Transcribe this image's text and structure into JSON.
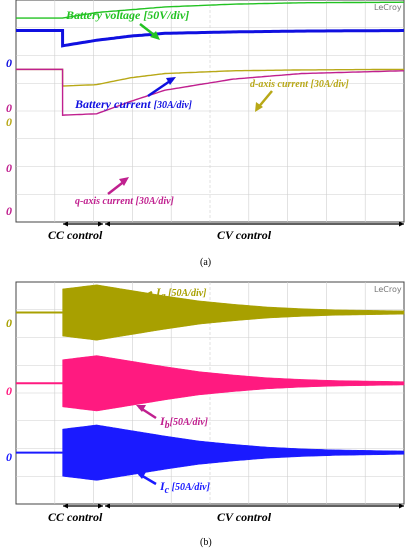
{
  "colors": {
    "grid": "#cfcfcf",
    "battery_voltage": "#22c222",
    "battery_current": "#1010e0",
    "d_axis": "#b8a817",
    "q_axis": "#c0208f",
    "Ia": "#a8a000",
    "Ib": "#ff1a80",
    "Ic": "#1a1aff"
  },
  "panel_a": {
    "scope_label": "LeCroy",
    "caption": "(a)",
    "zero_marks": [
      "0",
      "0",
      "0",
      "0",
      "0"
    ],
    "annotations": {
      "battery_voltage": "Battery voltage [50V/div]",
      "battery_current_name": "Battery current ",
      "battery_current_scale": "[30A/div]",
      "d_axis": "d-axis current [30A/div]",
      "q_axis": "q-axis current [30A/div]"
    },
    "cc_label": "CC control",
    "cv_label": "CV control"
  },
  "panel_b": {
    "scope_label": "LeCroy",
    "caption": "(b)",
    "zero_marks": [
      "0",
      "0",
      "0"
    ],
    "annotations": {
      "Ia_main": "I",
      "Ia_sub": "a",
      "Ia_scale": " [50A/div]",
      "Ib_main": "I",
      "Ib_sub": "b",
      "Ib_scale": "[50A/div]",
      "Ic_main": "I",
      "Ic_sub": "c",
      "Ic_scale": " [50A/div]"
    },
    "cc_label": "CC control",
    "cv_label": "CV control"
  },
  "chart_data": [
    {
      "type": "line",
      "note_units": "divisions (scope screen: 10 horizontal x 8 vertical divisions)",
      "xlim": [
        0,
        10
      ],
      "ylim": [
        0,
        8
      ],
      "grid": true,
      "cc_region": [
        0,
        1.0
      ],
      "cv_region": [
        1.0,
        10
      ],
      "series": [
        {
          "name": "Battery voltage",
          "x": [
            0,
            0,
            1.0,
            3,
            5,
            7,
            10
          ],
          "y": [
            7.35,
            7.35,
            7.55,
            7.75,
            7.85,
            7.9,
            7.92
          ]
        },
        {
          "name": "Battery current",
          "x": [
            0,
            0,
            1.0,
            2,
            3,
            5,
            7,
            10
          ],
          "y": [
            6.9,
            6.35,
            6.55,
            6.7,
            6.8,
            6.85,
            6.88,
            6.9
          ]
        },
        {
          "name": "d-axis current",
          "x": [
            0,
            0,
            1.0,
            2,
            3,
            5,
            7,
            10
          ],
          "y": [
            5.5,
            4.9,
            4.95,
            5.2,
            5.35,
            5.45,
            5.48,
            5.5
          ]
        },
        {
          "name": "q-axis current",
          "x": [
            0,
            0,
            1.0,
            2,
            3,
            5,
            7,
            10
          ],
          "y": [
            5.5,
            3.85,
            3.9,
            4.35,
            4.75,
            5.15,
            5.35,
            5.45
          ]
        }
      ]
    },
    {
      "type": "line",
      "note_units": "envelope amplitude in divisions above/below each trace's zero level",
      "xlim": [
        0,
        10
      ],
      "ylim": [
        0,
        8
      ],
      "grid": true,
      "cc_region": [
        0,
        1.0
      ],
      "cv_region": [
        1.0,
        10
      ],
      "series": [
        {
          "name": "Ia",
          "zero": 6.9,
          "x": [
            0,
            0,
            1.0,
            2,
            3,
            4,
            5,
            6,
            7,
            8,
            10
          ],
          "amplitude": [
            0,
            0.85,
            1.0,
            0.8,
            0.6,
            0.42,
            0.3,
            0.2,
            0.14,
            0.1,
            0.06
          ]
        },
        {
          "name": "Ib",
          "zero": 4.35,
          "x": [
            0,
            0,
            1.0,
            2,
            3,
            4,
            5,
            6,
            7,
            8,
            10
          ],
          "amplitude": [
            0,
            0.85,
            1.0,
            0.8,
            0.6,
            0.42,
            0.3,
            0.2,
            0.14,
            0.1,
            0.06
          ]
        },
        {
          "name": "Ic",
          "zero": 1.85,
          "x": [
            0,
            0,
            1.0,
            2,
            3,
            4,
            5,
            6,
            7,
            8,
            10
          ],
          "amplitude": [
            0,
            0.85,
            1.0,
            0.8,
            0.6,
            0.42,
            0.3,
            0.2,
            0.14,
            0.1,
            0.06
          ]
        }
      ]
    }
  ]
}
